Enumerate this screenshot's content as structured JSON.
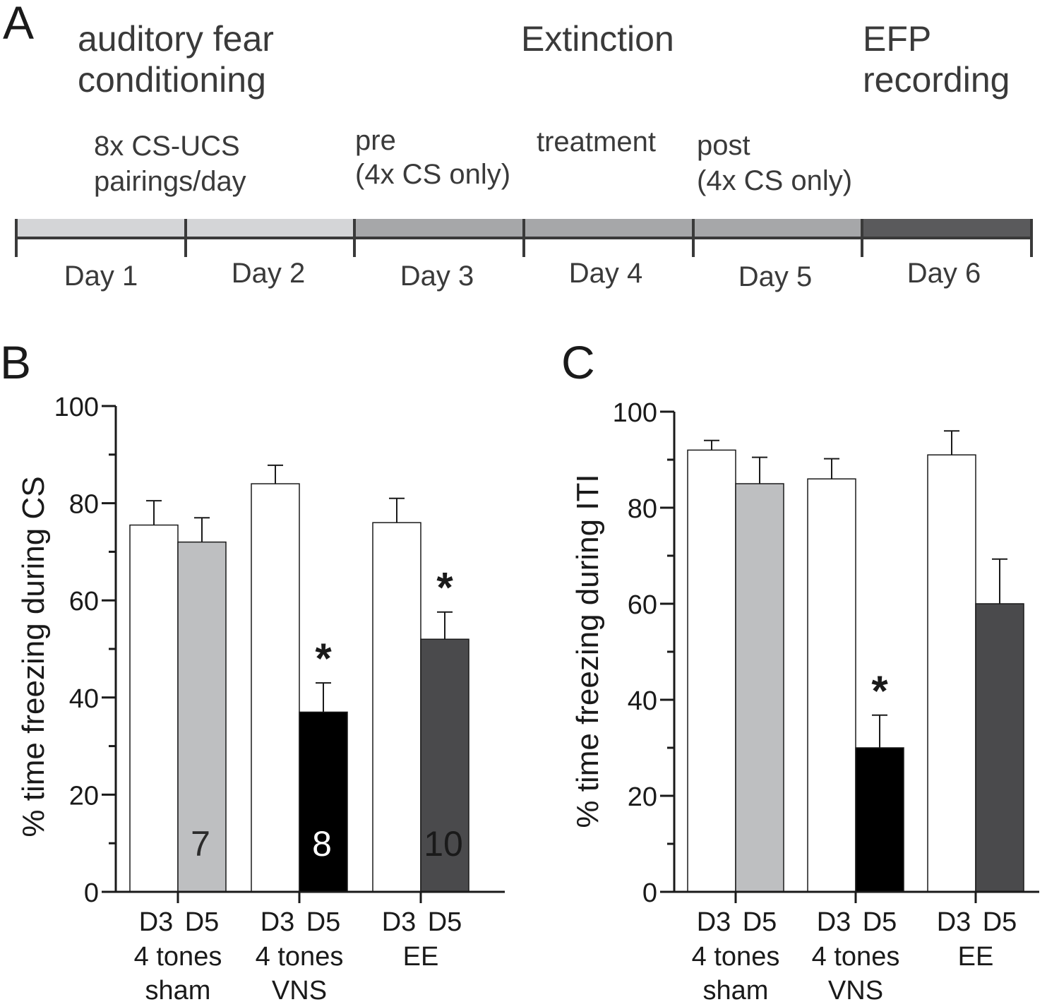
{
  "panel_a": {
    "letter": "A",
    "phase_conditioning_line1": "auditory fear",
    "phase_conditioning_line2": "conditioning",
    "phase_extinction": "Extinction",
    "phase_efp_line1": "EFP",
    "phase_efp_line2": "recording",
    "note_pairings_line1": "8x CS-UCS",
    "note_pairings_line2": "pairings/day",
    "note_pre_line1": "pre",
    "note_pre_line2": "(4x CS only)",
    "note_treatment": "treatment",
    "note_post_line1": "post",
    "note_post_line2": "(4x CS only)",
    "days": [
      "Day 1",
      "Day 2",
      "Day 3",
      "Day 4",
      "Day 5",
      "Day 6"
    ],
    "colors": {
      "conditioning": "#d4d5d7",
      "extinction": "#a6a7a9",
      "efp": "#5a5a5c",
      "axis": "#3a3a3a"
    }
  },
  "chart_data": [
    {
      "panel": "B",
      "type": "bar",
      "ylabel": "% time freezing during CS",
      "ylim": [
        0,
        100
      ],
      "yticks": [
        "0",
        "20",
        "40",
        "60",
        "80",
        "100"
      ],
      "groups": [
        {
          "line1": "4 tones",
          "line2": "sham",
          "n": "7"
        },
        {
          "line1": "4 tones",
          "line2": "VNS",
          "n": "8"
        },
        {
          "line1": "EE",
          "line2": "",
          "n": "10"
        }
      ],
      "categories": [
        "D3",
        "D5",
        "D3",
        "D5",
        "D3",
        "D5"
      ],
      "values": [
        75.5,
        72,
        84,
        37,
        76,
        52
      ],
      "errors": [
        5,
        5,
        3.8,
        6,
        5,
        5.6
      ],
      "fills": [
        "#ffffff",
        "#bebfc1",
        "#ffffff",
        "#000000",
        "#ffffff",
        "#4a4a4c"
      ],
      "n_label_colors": [
        "#2b2b2b",
        "#ffffff",
        "#1a1a1a"
      ],
      "significant": [
        false,
        false,
        false,
        true,
        false,
        true
      ],
      "sig_marker": "*"
    },
    {
      "panel": "C",
      "type": "bar",
      "ylabel": "% time freezing during ITI",
      "ylim": [
        0,
        100
      ],
      "yticks": [
        "0",
        "20",
        "40",
        "60",
        "80",
        "100"
      ],
      "groups": [
        {
          "line1": "4 tones",
          "line2": "sham"
        },
        {
          "line1": "4 tones",
          "line2": "VNS"
        },
        {
          "line1": "EE",
          "line2": ""
        }
      ],
      "categories": [
        "D3",
        "D5",
        "D3",
        "D5",
        "D3",
        "D5"
      ],
      "values": [
        92,
        85,
        86,
        30,
        91,
        60
      ],
      "errors": [
        2,
        5.5,
        4.2,
        6.8,
        5,
        9.3
      ],
      "fills": [
        "#ffffff",
        "#bebfc1",
        "#ffffff",
        "#000000",
        "#ffffff",
        "#4a4a4c"
      ],
      "significant": [
        false,
        false,
        false,
        true,
        false,
        false
      ],
      "sig_marker": "*"
    }
  ]
}
